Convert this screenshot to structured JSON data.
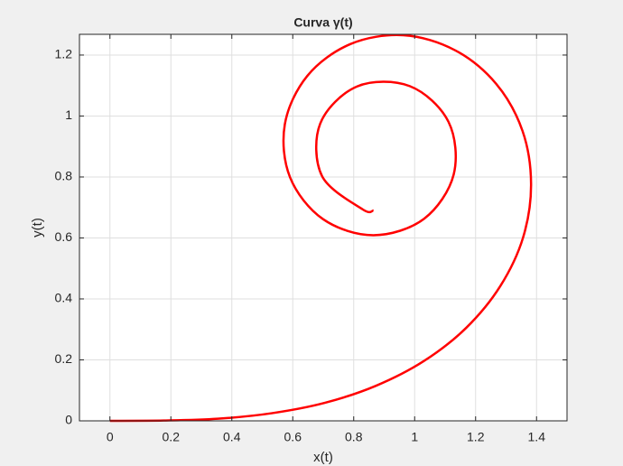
{
  "chart_data": {
    "type": "line",
    "title": "Curva γ(t)",
    "x_label": "x(t)",
    "y_label": "y(t)",
    "x": [
      0,
      0.177,
      0.354,
      0.531,
      0.705,
      0.873,
      1.03,
      1.169,
      1.281,
      1.356,
      1.382,
      1.354,
      1.268,
      1.132,
      0.963,
      0.789,
      0.648,
      0.574,
      0.591,
      0.699,
      0.865,
      1.031,
      1.128,
      1.111,
      0.984,
      0.811,
      0.69,
      0.696,
      0.829,
      0.865
    ],
    "series": [
      {
        "name": "γ(t)",
        "color": "#ff0000",
        "values": [
          0,
          0.001,
          0.007,
          0.025,
          0.059,
          0.115,
          0.196,
          0.305,
          0.442,
          0.602,
          0.777,
          0.951,
          1.105,
          1.216,
          1.265,
          1.236,
          1.132,
          0.973,
          0.799,
          0.662,
          0.609,
          0.663,
          0.808,
          0.981,
          1.098,
          1.097,
          0.975,
          0.803,
          0.694,
          0.69
        ]
      }
    ],
    "xlim": [
      -0.1,
      1.5
    ],
    "ylim": [
      0,
      1.268
    ],
    "xticks": [
      0,
      0.2,
      0.4,
      0.6,
      0.8,
      1,
      1.2,
      1.4
    ],
    "yticks": [
      0,
      0.2,
      0.4,
      0.6,
      0.8,
      1,
      1.2
    ],
    "grid": true
  }
}
